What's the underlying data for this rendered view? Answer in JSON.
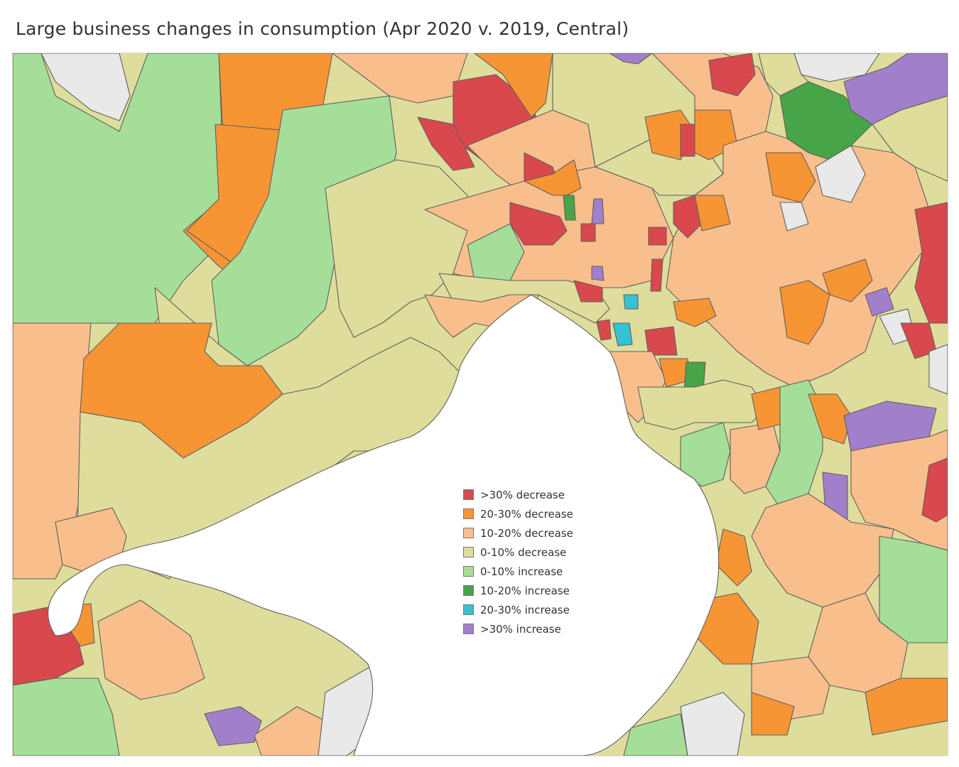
{
  "title": "Large business changes in consumption (Apr 2020 v. 2019, Central)",
  "colors": {
    "gt30_decrease": "#d9484d",
    "d20_30_decrease": "#f79535",
    "d10_20_decrease": "#f8bf8c",
    "d0_10_decrease": "#dedd9c",
    "i0_10_increase": "#a5de98",
    "i10_20_increase": "#47a447",
    "i20_30_increase": "#35c2d2",
    "gt30_increase": "#a27fca",
    "water": "#ffffff",
    "no_data": "#e9e9e9"
  },
  "legend": [
    {
      "label": ">30% decrease",
      "color": "#d9484d"
    },
    {
      "label": "20-30% decrease",
      "color": "#f79535"
    },
    {
      "label": "10-20% decrease",
      "color": "#f8bf8c"
    },
    {
      "label": "0-10% decrease",
      "color": "#dedd9c"
    },
    {
      "label": "0-10% increase",
      "color": "#a5de98"
    },
    {
      "label": "10-20% increase",
      "color": "#47a447"
    },
    {
      "label": "20-30% increase",
      "color": "#35c2d2"
    },
    {
      "label": ">30% increase",
      "color": "#a27fca"
    }
  ]
}
